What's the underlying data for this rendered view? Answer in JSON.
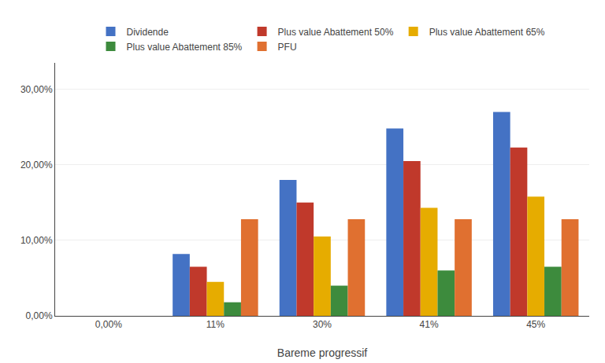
{
  "chart_data": {
    "type": "bar",
    "categories": [
      "0,00%",
      "11%",
      "30%",
      "41%",
      "45%"
    ],
    "series": [
      {
        "name": "Dividende",
        "color": "#4472C4",
        "values": [
          0.0,
          0.082,
          0.18,
          0.248,
          0.27
        ]
      },
      {
        "name": "Plus value Abattement 50%",
        "color": "#C0392B",
        "values": [
          0.0,
          0.065,
          0.15,
          0.205,
          0.223
        ]
      },
      {
        "name": "Plus value Abattement 65%",
        "color": "#E6AC00",
        "values": [
          0.0,
          0.045,
          0.105,
          0.143,
          0.158
        ]
      },
      {
        "name": "Plus value Abattement 85%",
        "color": "#3D8B3D",
        "values": [
          0.0,
          0.018,
          0.04,
          0.06,
          0.065
        ]
      },
      {
        "name": "PFU",
        "color": "#E07030",
        "values": [
          0.0,
          0.128,
          0.128,
          0.128,
          0.128
        ]
      }
    ],
    "xlabel": "Bareme progressif",
    "ylim": [
      0.0,
      0.335
    ],
    "yticks": [
      {
        "value": 0.0,
        "label": "0,00%"
      },
      {
        "value": 0.1,
        "label": "10,00%"
      },
      {
        "value": 0.2,
        "label": "20,00%"
      },
      {
        "value": 0.3,
        "label": "30,00%"
      }
    ],
    "grid": true,
    "legend": "top"
  }
}
